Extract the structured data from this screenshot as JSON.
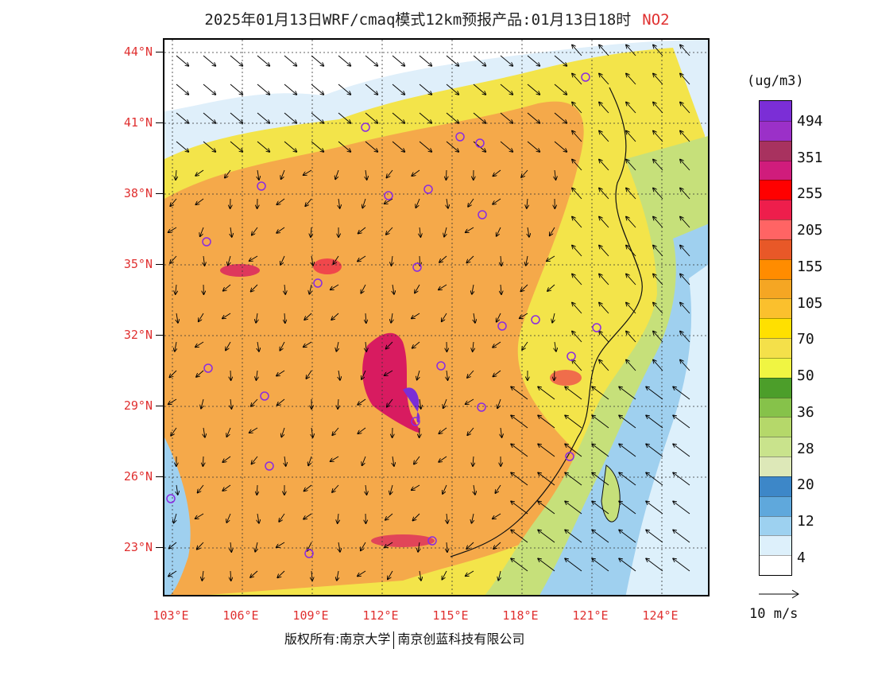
{
  "header": {
    "title": "2025年01月13日WRF/cmaq模式12km预报产品:01月13日18时",
    "pollutant": "NO2"
  },
  "axes": {
    "lat_labels": [
      "44°N",
      "41°N",
      "38°N",
      "35°N",
      "32°N",
      "29°N",
      "26°N",
      "23°N"
    ],
    "lon_labels": [
      "103°E",
      "106°E",
      "109°E",
      "112°E",
      "115°E",
      "118°E",
      "121°E",
      "124°E"
    ]
  },
  "legend": {
    "unit": "(ug/m3)",
    "labels": [
      "494",
      "351",
      "255",
      "205",
      "155",
      "105",
      "70",
      "50",
      "36",
      "28",
      "20",
      "12",
      "4"
    ],
    "colors": [
      "#7b2ed6",
      "#9b30c8",
      "#a8325f",
      "#d01c7c",
      "#ff0000",
      "#ee1e4c",
      "#ff6464",
      "#e85828",
      "#ff8c00",
      "#f5a623",
      "#fbc02d",
      "#ffe000",
      "#f4e04a",
      "#f0f542",
      "#4c9e2a",
      "#86c24a",
      "#b5d86a",
      "#c9e38c",
      "#dde8b8",
      "#3d87c8",
      "#5fa8dc",
      "#9dd1f0",
      "#ddf0fb",
      "#ffffff"
    ]
  },
  "wind_reference": {
    "label": "10 m/s"
  },
  "footer": {
    "copyright_left": "版权所有:南京大学",
    "copyright_right": "南京创蓝科技有限公司"
  },
  "stations": [
    "station-icon"
  ],
  "map_colors": {
    "land_high": "#f5a94a",
    "land_mid": "#fdd835",
    "land_low": "#c6e07a",
    "sea": "#9fd0ef",
    "hotspot": "#d81b60"
  }
}
